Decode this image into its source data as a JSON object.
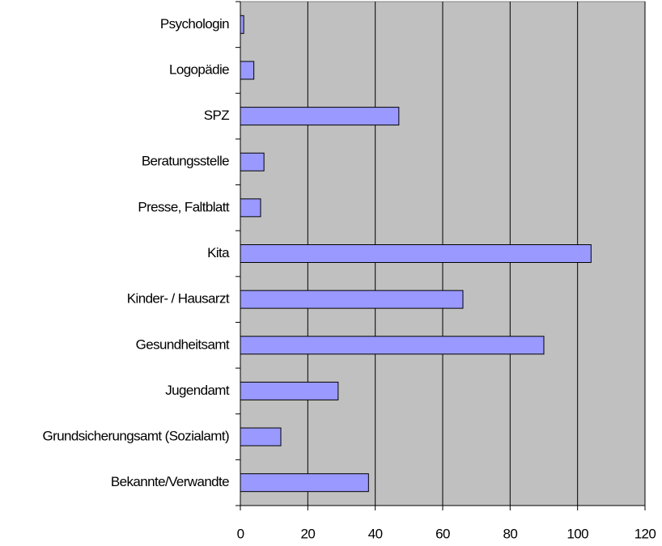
{
  "chart_data": {
    "type": "bar",
    "orientation": "horizontal",
    "categories": [
      "Psychologin",
      "Logopädie",
      "SPZ",
      "Beratungsstelle",
      "Presse, Faltblatt",
      "Kita",
      "Kinder- / Hausarzt",
      "Gesundheitsamt",
      "Jugendamt",
      "Grundsicherungsamt (Sozialamt)",
      "Bekannte/Verwandte"
    ],
    "values": [
      1,
      4,
      47,
      7,
      6,
      104,
      66,
      90,
      29,
      12,
      38
    ],
    "color": "#9999ff",
    "xlim": [
      0,
      120
    ],
    "xticks": [
      0,
      20,
      40,
      60,
      80,
      100,
      120
    ],
    "grid": true
  }
}
